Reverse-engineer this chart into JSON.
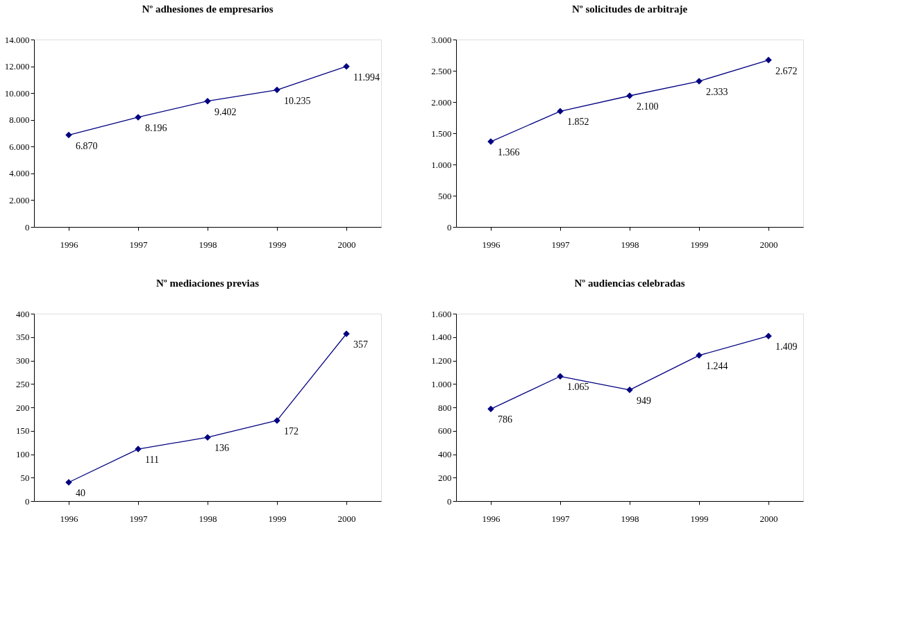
{
  "chart_data": [
    {
      "type": "line",
      "title": "Nº adhesiones de empresarios",
      "categories": [
        "1996",
        "1997",
        "1998",
        "1999",
        "2000"
      ],
      "series": [
        {
          "color": "#000080",
          "values": [
            6870,
            8196,
            9402,
            10235,
            11994
          ]
        }
      ],
      "value_labels": [
        "6.870",
        "8.196",
        "9.402",
        "10.235",
        "11.994"
      ],
      "ylim": [
        0,
        14000
      ],
      "yticks": [
        0,
        {
          "value": 2000,
          "label": "2.000"
        },
        {
          "value": 4000,
          "label": "4.000"
        },
        {
          "value": 6000,
          "label": "6.000"
        },
        {
          "value": 8000,
          "label": "8.000"
        },
        {
          "value": 10000,
          "label": "10.000"
        },
        {
          "value": 12000,
          "label": "12.000"
        },
        {
          "value": 14000,
          "label": "14.000"
        }
      ],
      "marker": "diamond",
      "line_style": "solid",
      "grid": false
    },
    {
      "type": "line",
      "title": "Nº solicitudes de arbitraje",
      "categories": [
        "1996",
        "1997",
        "1998",
        "1999",
        "2000"
      ],
      "series": [
        {
          "color": "#000080",
          "values": [
            1366,
            1852,
            2100,
            2333,
            2672
          ]
        }
      ],
      "value_labels": [
        "1.366",
        "1.852",
        "2.100",
        "2.333",
        "2.672"
      ],
      "ylim": [
        0,
        3000
      ],
      "yticks": [
        0,
        500,
        {
          "value": 1000,
          "label": "1.000"
        },
        {
          "value": 1500,
          "label": "1.500"
        },
        {
          "value": 2000,
          "label": "2.000"
        },
        {
          "value": 2500,
          "label": "2.500"
        },
        {
          "value": 3000,
          "label": "3.000"
        }
      ],
      "marker": "diamond",
      "line_style": "solid",
      "grid": false
    },
    {
      "type": "line",
      "title": "Nº mediaciones previas",
      "categories": [
        "1996",
        "1997",
        "1998",
        "1999",
        "2000"
      ],
      "series": [
        {
          "color": "#000080",
          "values": [
            40,
            111,
            136,
            172,
            357
          ]
        }
      ],
      "value_labels": [
        "40",
        "111",
        "136",
        "172",
        "357"
      ],
      "ylim": [
        0,
        400
      ],
      "yticks": [
        0,
        50,
        100,
        150,
        200,
        250,
        300,
        350,
        400
      ],
      "marker": "diamond",
      "line_style": "solid",
      "grid": false
    },
    {
      "type": "line",
      "title": "Nº audiencias celebradas",
      "categories": [
        "1996",
        "1997",
        "1998",
        "1999",
        "2000"
      ],
      "series": [
        {
          "color": "#000080",
          "values": [
            786,
            1065,
            949,
            1244,
            1409
          ]
        }
      ],
      "value_labels": [
        "786",
        "1.065",
        "949",
        "1.244",
        "1.409"
      ],
      "ylim": [
        0,
        1600
      ],
      "yticks": [
        0,
        200,
        400,
        600,
        800,
        {
          "value": 1000,
          "label": "1.000"
        },
        {
          "value": 1200,
          "label": "1.200"
        },
        {
          "value": 1400,
          "label": "1.400"
        },
        {
          "value": 1600,
          "label": "1.600"
        }
      ],
      "marker": "diamond",
      "line_style": "solid",
      "grid": false
    }
  ]
}
